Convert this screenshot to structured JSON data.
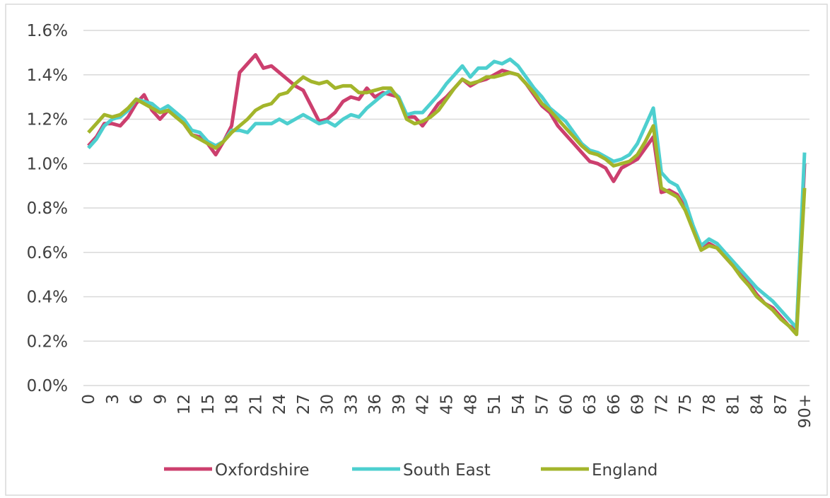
{
  "chart_data": {
    "type": "line",
    "categories": [
      "0",
      null,
      null,
      "3",
      null,
      null,
      "6",
      null,
      null,
      "9",
      null,
      null,
      "12",
      null,
      null,
      "15",
      null,
      null,
      "18",
      null,
      null,
      "21",
      null,
      null,
      "24",
      null,
      null,
      "27",
      null,
      null,
      "30",
      null,
      null,
      "33",
      null,
      null,
      "36",
      null,
      null,
      "39",
      null,
      null,
      "42",
      null,
      null,
      "45",
      null,
      null,
      "48",
      null,
      null,
      "51",
      null,
      null,
      "54",
      null,
      null,
      "57",
      null,
      null,
      "60",
      null,
      null,
      "63",
      null,
      null,
      "66",
      null,
      null,
      "69",
      null,
      null,
      "72",
      null,
      null,
      "75",
      null,
      null,
      "78",
      null,
      null,
      "81",
      null,
      null,
      "84",
      null,
      null,
      "87",
      null,
      null,
      "90+"
    ],
    "series": [
      {
        "name": "Oxfordshire",
        "color": "#cc3f6e",
        "values": [
          1.08,
          1.12,
          1.18,
          1.18,
          1.17,
          1.21,
          1.27,
          1.31,
          1.24,
          1.2,
          1.24,
          1.22,
          1.18,
          1.13,
          1.12,
          1.09,
          1.04,
          1.1,
          1.17,
          1.41,
          1.45,
          1.49,
          1.43,
          1.44,
          1.41,
          1.38,
          1.35,
          1.33,
          1.26,
          1.19,
          1.2,
          1.23,
          1.28,
          1.3,
          1.29,
          1.34,
          1.3,
          1.32,
          1.31,
          1.3,
          1.21,
          1.21,
          1.17,
          1.22,
          1.27,
          1.3,
          1.34,
          1.38,
          1.35,
          1.37,
          1.38,
          1.4,
          1.42,
          1.41,
          1.4,
          1.36,
          1.31,
          1.26,
          1.23,
          1.17,
          1.13,
          1.09,
          1.05,
          1.01,
          1.0,
          0.98,
          0.92,
          0.98,
          1.0,
          1.02,
          1.07,
          1.12,
          0.87,
          0.88,
          0.86,
          0.8,
          0.71,
          0.63,
          0.64,
          0.62,
          0.58,
          0.54,
          0.5,
          0.46,
          0.41,
          0.37,
          0.35,
          0.31,
          0.27,
          0.25,
          1.0
        ]
      },
      {
        "name": "South East",
        "color": "#4dcfcf",
        "values": [
          1.07,
          1.11,
          1.17,
          1.2,
          1.21,
          1.24,
          1.29,
          1.28,
          1.27,
          1.24,
          1.26,
          1.23,
          1.2,
          1.15,
          1.14,
          1.1,
          1.08,
          1.1,
          1.15,
          1.15,
          1.14,
          1.18,
          1.18,
          1.18,
          1.2,
          1.18,
          1.2,
          1.22,
          1.2,
          1.18,
          1.19,
          1.17,
          1.2,
          1.22,
          1.21,
          1.25,
          1.28,
          1.31,
          1.33,
          1.3,
          1.22,
          1.23,
          1.23,
          1.27,
          1.31,
          1.36,
          1.4,
          1.44,
          1.39,
          1.43,
          1.43,
          1.46,
          1.45,
          1.47,
          1.44,
          1.39,
          1.34,
          1.3,
          1.25,
          1.22,
          1.19,
          1.14,
          1.09,
          1.06,
          1.05,
          1.03,
          1.01,
          1.02,
          1.04,
          1.09,
          1.17,
          1.25,
          0.96,
          0.92,
          0.9,
          0.83,
          0.72,
          0.63,
          0.66,
          0.64,
          0.6,
          0.56,
          0.52,
          0.48,
          0.44,
          0.41,
          0.38,
          0.34,
          0.3,
          0.26,
          1.05
        ]
      },
      {
        "name": "England",
        "color": "#a3b52b",
        "values": [
          1.14,
          1.18,
          1.22,
          1.21,
          1.22,
          1.25,
          1.29,
          1.27,
          1.25,
          1.23,
          1.24,
          1.21,
          1.18,
          1.13,
          1.11,
          1.09,
          1.07,
          1.1,
          1.14,
          1.17,
          1.2,
          1.24,
          1.26,
          1.27,
          1.31,
          1.32,
          1.36,
          1.39,
          1.37,
          1.36,
          1.37,
          1.34,
          1.35,
          1.35,
          1.32,
          1.32,
          1.33,
          1.34,
          1.34,
          1.29,
          1.2,
          1.18,
          1.19,
          1.21,
          1.24,
          1.29,
          1.34,
          1.38,
          1.36,
          1.37,
          1.39,
          1.39,
          1.4,
          1.41,
          1.4,
          1.36,
          1.32,
          1.27,
          1.24,
          1.2,
          1.16,
          1.12,
          1.08,
          1.05,
          1.04,
          1.02,
          0.99,
          1.0,
          1.01,
          1.04,
          1.1,
          1.17,
          0.89,
          0.87,
          0.85,
          0.79,
          0.7,
          0.61,
          0.63,
          0.62,
          0.58,
          0.54,
          0.49,
          0.45,
          0.4,
          0.37,
          0.34,
          0.3,
          0.27,
          0.23,
          0.89
        ]
      }
    ],
    "ylim": [
      0,
      1.6
    ],
    "yticks": [
      {
        "value": 0,
        "label": "0.0%"
      },
      {
        "value": 0.2,
        "label": "0.2%"
      },
      {
        "value": 0.4,
        "label": "0.4%"
      },
      {
        "value": 0.6,
        "label": "0.6%"
      },
      {
        "value": 0.8,
        "label": "0.8%"
      },
      {
        "value": 1.0,
        "label": "1.0%"
      },
      {
        "value": 1.2,
        "label": "1.2%"
      },
      {
        "value": 1.4,
        "label": "1.4%"
      },
      {
        "value": 1.6,
        "label": "1.6%"
      }
    ],
    "grid": true,
    "legend": "bottom"
  }
}
